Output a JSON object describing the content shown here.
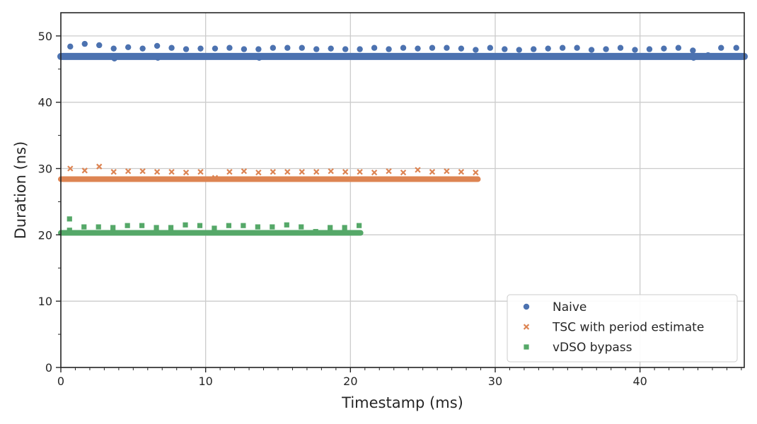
{
  "chart_data": {
    "type": "scatter",
    "title": "",
    "xlabel": "Timestamp (ms)",
    "ylabel": "Duration (ns)",
    "xlim": [
      0,
      47.2
    ],
    "ylim": [
      0,
      53.5
    ],
    "x_ticks": [
      0,
      10,
      20,
      30,
      40
    ],
    "x_minor_ticks": [
      1,
      2,
      3,
      4,
      5,
      6,
      7,
      8,
      9,
      11,
      12,
      13,
      14,
      15,
      16,
      17,
      18,
      19,
      21,
      22,
      23,
      24,
      25,
      26,
      27,
      28,
      29,
      31,
      32,
      33,
      34,
      35,
      36,
      37,
      38,
      39,
      41,
      42,
      43,
      44,
      45,
      46,
      47
    ],
    "y_ticks": [
      0,
      10,
      20,
      30,
      40,
      50
    ],
    "y_minor_ticks": [
      5,
      15,
      25,
      35,
      45
    ],
    "grid": true,
    "legend": "bottom-right",
    "series": [
      {
        "name": "Naive",
        "marker": "circle",
        "color": "#4c72b0",
        "baseline": {
          "x_start": 0,
          "x_end": 47.2,
          "y": 46.9
        },
        "points": [
          [
            0.65,
            48.4
          ],
          [
            1.65,
            48.8
          ],
          [
            2.65,
            48.6
          ],
          [
            3.65,
            48.1
          ],
          [
            4.65,
            48.3
          ],
          [
            5.65,
            48.1
          ],
          [
            6.65,
            48.5
          ],
          [
            7.65,
            48.2
          ],
          [
            8.65,
            48.0
          ],
          [
            9.65,
            48.1
          ],
          [
            10.65,
            48.1
          ],
          [
            11.65,
            48.2
          ],
          [
            12.65,
            48.0
          ],
          [
            13.65,
            48.0
          ],
          [
            14.65,
            48.2
          ],
          [
            15.65,
            48.2
          ],
          [
            16.65,
            48.2
          ],
          [
            17.65,
            48.0
          ],
          [
            18.65,
            48.1
          ],
          [
            19.65,
            48.0
          ],
          [
            20.65,
            48.0
          ],
          [
            21.65,
            48.2
          ],
          [
            22.65,
            48.0
          ],
          [
            23.65,
            48.2
          ],
          [
            24.65,
            48.1
          ],
          [
            25.65,
            48.2
          ],
          [
            26.65,
            48.2
          ],
          [
            27.65,
            48.1
          ],
          [
            28.65,
            47.9
          ],
          [
            29.65,
            48.2
          ],
          [
            30.65,
            48.0
          ],
          [
            31.65,
            47.9
          ],
          [
            32.65,
            48.0
          ],
          [
            33.65,
            48.1
          ],
          [
            34.65,
            48.2
          ],
          [
            35.65,
            48.2
          ],
          [
            36.65,
            47.9
          ],
          [
            37.65,
            48.0
          ],
          [
            38.65,
            48.2
          ],
          [
            39.65,
            47.9
          ],
          [
            40.65,
            48.0
          ],
          [
            41.65,
            48.1
          ],
          [
            42.65,
            48.2
          ],
          [
            43.65,
            47.8
          ],
          [
            45.6,
            48.2
          ],
          [
            46.65,
            48.2
          ],
          [
            3.7,
            46.6
          ],
          [
            6.7,
            46.7
          ],
          [
            13.7,
            46.7
          ],
          [
            43.7,
            46.7
          ],
          [
            44.7,
            47.1
          ]
        ]
      },
      {
        "name": "TSC with period estimate",
        "marker": "x",
        "color": "#dd8452",
        "baseline": {
          "x_start": 0,
          "x_end": 28.8,
          "y": 28.4
        },
        "points": [
          [
            0.65,
            30.0
          ],
          [
            1.65,
            29.7
          ],
          [
            2.65,
            30.3
          ],
          [
            3.65,
            29.5
          ],
          [
            4.65,
            29.6
          ],
          [
            5.65,
            29.6
          ],
          [
            6.65,
            29.5
          ],
          [
            7.65,
            29.5
          ],
          [
            8.65,
            29.4
          ],
          [
            9.65,
            29.5
          ],
          [
            10.65,
            28.6
          ],
          [
            11.65,
            29.5
          ],
          [
            12.65,
            29.6
          ],
          [
            13.65,
            29.4
          ],
          [
            14.65,
            29.5
          ],
          [
            15.65,
            29.5
          ],
          [
            16.65,
            29.5
          ],
          [
            17.65,
            29.5
          ],
          [
            18.65,
            29.6
          ],
          [
            19.65,
            29.5
          ],
          [
            20.65,
            29.5
          ],
          [
            21.65,
            29.4
          ],
          [
            22.65,
            29.6
          ],
          [
            23.65,
            29.4
          ],
          [
            24.65,
            29.8
          ],
          [
            25.65,
            29.5
          ],
          [
            26.65,
            29.6
          ],
          [
            27.65,
            29.5
          ],
          [
            28.65,
            29.4
          ]
        ]
      },
      {
        "name": "vDSO bypass",
        "marker": "square",
        "color": "#55a868",
        "baseline": {
          "x_start": 0,
          "x_end": 20.7,
          "y": 20.3
        },
        "points": [
          [
            0.6,
            22.4
          ],
          [
            0.6,
            20.7
          ],
          [
            1.6,
            21.2
          ],
          [
            2.6,
            21.2
          ],
          [
            3.6,
            21.1
          ],
          [
            4.6,
            21.4
          ],
          [
            5.6,
            21.4
          ],
          [
            6.6,
            21.1
          ],
          [
            7.6,
            21.1
          ],
          [
            8.6,
            21.5
          ],
          [
            9.6,
            21.4
          ],
          [
            10.6,
            21.0
          ],
          [
            11.6,
            21.4
          ],
          [
            12.6,
            21.4
          ],
          [
            13.6,
            21.2
          ],
          [
            14.6,
            21.2
          ],
          [
            15.6,
            21.5
          ],
          [
            16.6,
            21.2
          ],
          [
            17.6,
            20.5
          ],
          [
            18.6,
            21.1
          ],
          [
            19.6,
            21.1
          ],
          [
            20.6,
            21.4
          ]
        ]
      }
    ]
  }
}
